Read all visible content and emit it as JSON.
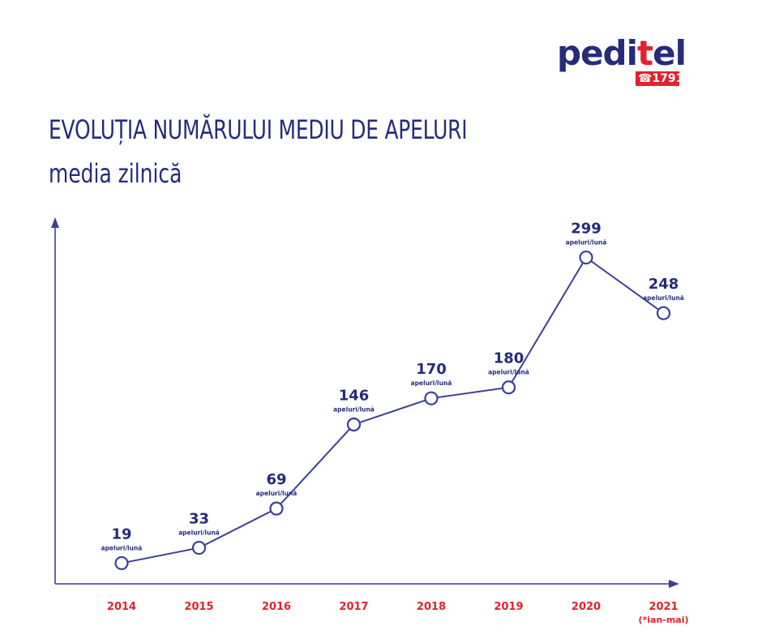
{
  "logo": {
    "brand_part1": "pedi",
    "brand_part2": "t",
    "brand_part3": "el",
    "badge": "☎1791"
  },
  "colors": {
    "navy": "#262b7a",
    "red": "#e3212f",
    "line": "#3b3f96"
  },
  "chart_data": {
    "type": "line",
    "title": "EVOLUȚIA NUMĂRULUI MEDIU  DE APELURI",
    "subtitle": "media zilnică",
    "categories": [
      "2014",
      "2015",
      "2016",
      "2017",
      "2018",
      "2019",
      "2020",
      "2021"
    ],
    "category_notes": [
      "",
      "",
      "",
      "",
      "",
      "",
      "",
      "(*ian-mai)"
    ],
    "values": [
      19,
      33,
      69,
      146,
      170,
      180,
      299,
      248
    ],
    "value_labels": [
      "19",
      "33",
      "69",
      "146",
      "170",
      "180",
      "299",
      "248"
    ],
    "unit_label": "apeluri/lună",
    "grid": false,
    "legend": "none"
  }
}
